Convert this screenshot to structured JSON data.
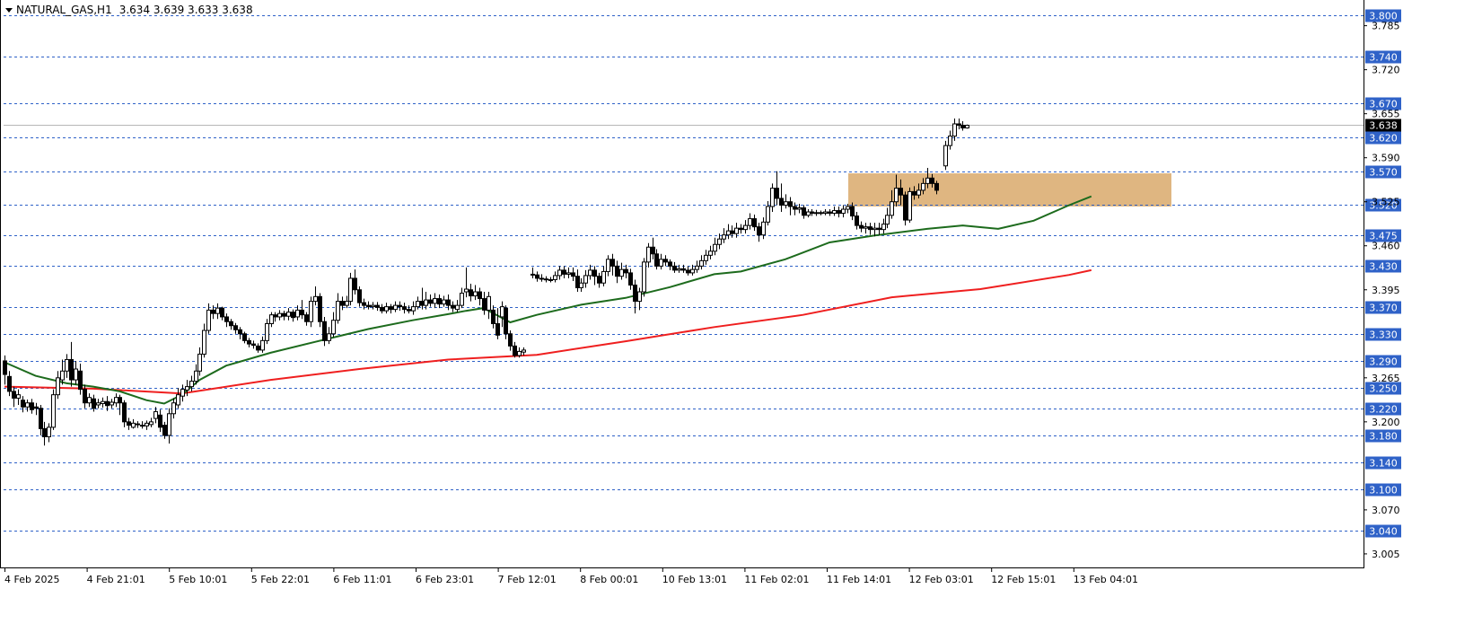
{
  "header": {
    "symbol": "NATURAL_GAS,H1",
    "ohlc": "3.634 3.639 3.633 3.638"
  },
  "colors": {
    "background": "#ffffff",
    "level_line": "#2f62c8",
    "level_badge": "#2f62c8",
    "current_badge": "#000000",
    "bull_body": "#ffffff",
    "bear_body": "#000000",
    "ma_fast": "#1d6b1d",
    "ma_slow": "#ef1f1f",
    "zone": "#d9a96b"
  },
  "chart_data": {
    "type": "candlestick",
    "timeframe": "H1",
    "ylim": [
      2.985,
      3.815
    ],
    "y_ticks": [
      "3.785",
      "3.720",
      "3.655",
      "3.590",
      "3.525",
      "3.460",
      "3.395",
      "3.265",
      "3.200",
      "3.070",
      "3.005"
    ],
    "x_labels": [
      "4 Feb 2025",
      "4 Feb 21:01",
      "5 Feb 10:01",
      "5 Feb 22:01",
      "6 Feb 11:01",
      "6 Feb 23:01",
      "7 Feb 12:01",
      "8 Feb 00:01",
      "10 Feb 13:01",
      "11 Feb 02:01",
      "11 Feb 14:01",
      "12 Feb 03:01",
      "12 Feb 15:01",
      "13 Feb 04:01"
    ],
    "levels": [
      "3.800",
      "3.740",
      "3.670",
      "3.620",
      "3.570",
      "3.520",
      "3.475",
      "3.430",
      "3.370",
      "3.330",
      "3.290",
      "3.250",
      "3.220",
      "3.180",
      "3.140",
      "3.100",
      "3.040"
    ],
    "current_price": "3.638",
    "zone": {
      "top": 3.567,
      "bottom": 3.518
    },
    "ma_fast_path": [
      [
        0,
        3.288
      ],
      [
        7,
        3.268
      ],
      [
        14,
        3.257
      ],
      [
        20,
        3.252
      ],
      [
        26,
        3.245
      ],
      [
        32,
        3.232
      ],
      [
        36,
        3.227
      ],
      [
        40,
        3.24
      ],
      [
        44,
        3.262
      ],
      [
        50,
        3.283
      ],
      [
        60,
        3.302
      ],
      [
        70,
        3.318
      ],
      [
        82,
        3.337
      ],
      [
        92,
        3.35
      ],
      [
        100,
        3.359
      ],
      [
        104,
        3.364
      ],
      [
        108,
        3.368
      ],
      [
        114,
        3.347
      ],
      [
        120,
        3.358
      ],
      [
        130,
        3.373
      ],
      [
        140,
        3.383
      ],
      [
        150,
        3.399
      ],
      [
        160,
        3.418
      ],
      [
        166,
        3.422
      ],
      [
        176,
        3.44
      ],
      [
        186,
        3.465
      ],
      [
        196,
        3.475
      ],
      [
        208,
        3.485
      ],
      [
        216,
        3.49
      ],
      [
        224,
        3.485
      ],
      [
        232,
        3.497
      ],
      [
        240,
        3.52
      ],
      [
        245,
        3.533
      ]
    ],
    "ma_slow_path": [
      [
        0,
        3.252
      ],
      [
        20,
        3.249
      ],
      [
        40,
        3.242
      ],
      [
        60,
        3.262
      ],
      [
        80,
        3.278
      ],
      [
        100,
        3.292
      ],
      [
        120,
        3.299
      ],
      [
        140,
        3.319
      ],
      [
        160,
        3.34
      ],
      [
        180,
        3.358
      ],
      [
        200,
        3.384
      ],
      [
        220,
        3.396
      ],
      [
        240,
        3.417
      ],
      [
        245,
        3.424
      ]
    ],
    "candles": [
      [
        3.29,
        3.27,
        3.298,
        3.255
      ],
      [
        3.267,
        3.245,
        3.275,
        3.238
      ],
      [
        3.245,
        3.235,
        3.252,
        3.222
      ],
      [
        3.235,
        3.24,
        3.248,
        3.225
      ],
      [
        3.232,
        3.222,
        3.238,
        3.214
      ],
      [
        3.222,
        3.228,
        3.233,
        3.215
      ],
      [
        3.228,
        3.218,
        3.234,
        3.212
      ],
      [
        3.222,
        3.22,
        3.228,
        3.21
      ],
      [
        3.22,
        3.19,
        3.225,
        3.18
      ],
      [
        3.19,
        3.178,
        3.2,
        3.165
      ],
      [
        3.178,
        3.192,
        3.198,
        3.17
      ],
      [
        3.192,
        3.24,
        3.248,
        3.188
      ],
      [
        3.24,
        3.265,
        3.275,
        3.234
      ],
      [
        3.262,
        3.275,
        3.292,
        3.255
      ],
      [
        3.275,
        3.292,
        3.3,
        3.265
      ],
      [
        3.292,
        3.262,
        3.318,
        3.252
      ],
      [
        3.262,
        3.278,
        3.29,
        3.255
      ],
      [
        3.275,
        3.248,
        3.286,
        3.24
      ],
      [
        3.248,
        3.228,
        3.255,
        3.22
      ],
      [
        3.228,
        3.236,
        3.242,
        3.222
      ],
      [
        3.234,
        3.22,
        3.24,
        3.215
      ],
      [
        3.225,
        3.228,
        3.234,
        3.22
      ],
      [
        3.227,
        3.23,
        3.236,
        3.221
      ],
      [
        3.23,
        3.224,
        3.238,
        3.216
      ],
      [
        3.225,
        3.229,
        3.234,
        3.22
      ],
      [
        3.228,
        3.236,
        3.242,
        3.222
      ],
      [
        3.236,
        3.228,
        3.24,
        3.21
      ],
      [
        3.228,
        3.2,
        3.232,
        3.192
      ],
      [
        3.2,
        3.195,
        3.206,
        3.188
      ],
      [
        3.192,
        3.198,
        3.204,
        3.19
      ],
      [
        3.197,
        3.196,
        3.201,
        3.191
      ],
      [
        3.195,
        3.194,
        3.201,
        3.19
      ],
      [
        3.194,
        3.198,
        3.202,
        3.188
      ],
      [
        3.196,
        3.2,
        3.206,
        3.192
      ],
      [
        3.205,
        3.215,
        3.222,
        3.198
      ],
      [
        3.21,
        3.192,
        3.218,
        3.185
      ],
      [
        3.195,
        3.18,
        3.2,
        3.175
      ],
      [
        3.18,
        3.212,
        3.22,
        3.168
      ],
      [
        3.212,
        3.228,
        3.235,
        3.205
      ],
      [
        3.225,
        3.24,
        3.25,
        3.22
      ],
      [
        3.238,
        3.248,
        3.255,
        3.23
      ],
      [
        3.247,
        3.252,
        3.262,
        3.238
      ],
      [
        3.252,
        3.26,
        3.268,
        3.245
      ],
      [
        3.26,
        3.275,
        3.285,
        3.255
      ],
      [
        3.275,
        3.3,
        3.31,
        3.268
      ],
      [
        3.3,
        3.335,
        3.345,
        3.295
      ],
      [
        3.335,
        3.365,
        3.375,
        3.33
      ],
      [
        3.365,
        3.36,
        3.372,
        3.352
      ],
      [
        3.36,
        3.368,
        3.375,
        3.352
      ],
      [
        3.368,
        3.355,
        3.37,
        3.35
      ],
      [
        3.355,
        3.348,
        3.36,
        3.34
      ],
      [
        3.348,
        3.342,
        3.352,
        3.336
      ],
      [
        3.342,
        3.336,
        3.346,
        3.33
      ],
      [
        3.336,
        3.33,
        3.34,
        3.322
      ],
      [
        3.33,
        3.32,
        3.333,
        3.316
      ],
      [
        3.32,
        3.315,
        3.324,
        3.31
      ],
      [
        3.315,
        3.313,
        3.32,
        3.308
      ],
      [
        3.312,
        3.306,
        3.316,
        3.302
      ],
      [
        3.306,
        3.32,
        3.326,
        3.302
      ],
      [
        3.32,
        3.345,
        3.352,
        3.315
      ],
      [
        3.345,
        3.358,
        3.362,
        3.34
      ],
      [
        3.358,
        3.355,
        3.362,
        3.348
      ],
      [
        3.355,
        3.36,
        3.365,
        3.35
      ],
      [
        3.36,
        3.356,
        3.364,
        3.35
      ],
      [
        3.356,
        3.362,
        3.368,
        3.35
      ],
      [
        3.362,
        3.354,
        3.366,
        3.348
      ],
      [
        3.355,
        3.365,
        3.372,
        3.35
      ],
      [
        3.365,
        3.358,
        3.38,
        3.352
      ],
      [
        3.358,
        3.348,
        3.362,
        3.342
      ],
      [
        3.348,
        3.378,
        3.385,
        3.34
      ],
      [
        3.378,
        3.385,
        3.4,
        3.372
      ],
      [
        3.385,
        3.348,
        3.39,
        3.34
      ],
      [
        3.348,
        3.32,
        3.355,
        3.312
      ],
      [
        3.32,
        3.33,
        3.34,
        3.315
      ],
      [
        3.33,
        3.35,
        3.362,
        3.325
      ],
      [
        3.35,
        3.378,
        3.39,
        3.345
      ],
      [
        3.378,
        3.372,
        3.385,
        3.365
      ],
      [
        3.372,
        3.378,
        3.386,
        3.368
      ],
      [
        3.378,
        3.412,
        3.42,
        3.372
      ],
      [
        3.412,
        3.395,
        3.425,
        3.388
      ],
      [
        3.395,
        3.376,
        3.4,
        3.37
      ],
      [
        3.376,
        3.372,
        3.382,
        3.366
      ],
      [
        3.372,
        3.37,
        3.378,
        3.366
      ],
      [
        3.37,
        3.372,
        3.377,
        3.366
      ],
      [
        3.372,
        3.369,
        3.377,
        3.364
      ],
      [
        3.369,
        3.364,
        3.374,
        3.36
      ],
      [
        3.364,
        3.37,
        3.376,
        3.36
      ],
      [
        3.37,
        3.366,
        3.374,
        3.36
      ],
      [
        3.366,
        3.372,
        3.378,
        3.362
      ],
      [
        3.372,
        3.37,
        3.378,
        3.364
      ],
      [
        3.37,
        3.366,
        3.376,
        3.36
      ],
      [
        3.366,
        3.364,
        3.372,
        3.36
      ],
      [
        3.364,
        3.37,
        3.378,
        3.358
      ],
      [
        3.37,
        3.378,
        3.385,
        3.366
      ],
      [
        3.378,
        3.372,
        3.398,
        3.366
      ],
      [
        3.372,
        3.38,
        3.392,
        3.366
      ],
      [
        3.38,
        3.375,
        3.388,
        3.37
      ],
      [
        3.375,
        3.382,
        3.39,
        3.368
      ],
      [
        3.382,
        3.374,
        3.388,
        3.368
      ],
      [
        3.374,
        3.38,
        3.386,
        3.37
      ],
      [
        3.38,
        3.372,
        3.388,
        3.365
      ],
      [
        3.372,
        3.368,
        3.378,
        3.362
      ],
      [
        3.366,
        3.372,
        3.38,
        3.362
      ],
      [
        3.372,
        3.39,
        3.398,
        3.368
      ],
      [
        3.392,
        3.396,
        3.428,
        3.384
      ],
      [
        3.395,
        3.386,
        3.404,
        3.378
      ],
      [
        3.386,
        3.392,
        3.402,
        3.38
      ],
      [
        3.392,
        3.382,
        3.398,
        3.372
      ],
      [
        3.382,
        3.365,
        3.392,
        3.358
      ],
      [
        3.365,
        3.385,
        3.392,
        3.352
      ],
      [
        3.365,
        3.345,
        3.372,
        3.338
      ],
      [
        3.345,
        3.328,
        3.368,
        3.322
      ],
      [
        3.355,
        3.37,
        3.378,
        3.34
      ],
      [
        3.368,
        3.33,
        3.372,
        3.322
      ],
      [
        3.33,
        3.312,
        3.335,
        3.305
      ],
      [
        3.312,
        3.298,
        3.318,
        3.295
      ],
      [
        3.298,
        3.304,
        3.31,
        3.295
      ],
      [
        3.303,
        3.306,
        3.31,
        3.298
      ],
      [
        null,
        null,
        null,
        null
      ],
      [
        3.418,
        3.417,
        3.428,
        3.412
      ],
      [
        3.417,
        3.412,
        3.422,
        3.407
      ],
      [
        3.412,
        3.411,
        3.418,
        3.407
      ],
      [
        3.411,
        3.41,
        3.415,
        3.406
      ],
      [
        3.41,
        3.41,
        3.414,
        3.406
      ],
      [
        3.41,
        3.416,
        3.422,
        3.406
      ],
      [
        3.416,
        3.424,
        3.43,
        3.41
      ],
      [
        3.424,
        3.418,
        3.43,
        3.412
      ],
      [
        3.418,
        3.42,
        3.428,
        3.412
      ],
      [
        3.42,
        3.415,
        3.428,
        3.408
      ],
      [
        3.415,
        3.398,
        3.425,
        3.392
      ],
      [
        3.398,
        3.405,
        3.412,
        3.392
      ],
      [
        3.405,
        3.416,
        3.424,
        3.398
      ],
      [
        3.416,
        3.424,
        3.432,
        3.41
      ],
      [
        3.424,
        3.415,
        3.43,
        3.402
      ],
      [
        3.415,
        3.405,
        3.42,
        3.398
      ],
      [
        3.405,
        3.422,
        3.43,
        3.4
      ],
      [
        3.422,
        3.44,
        3.446,
        3.415
      ],
      [
        3.44,
        3.43,
        3.448,
        3.416
      ],
      [
        3.43,
        3.415,
        3.438,
        3.405
      ],
      [
        3.415,
        3.425,
        3.435,
        3.41
      ],
      [
        3.425,
        3.42,
        3.432,
        3.412
      ],
      [
        3.42,
        3.402,
        3.426,
        3.395
      ],
      [
        3.402,
        3.378,
        3.41,
        3.36
      ],
      [
        3.378,
        3.392,
        3.398,
        3.365
      ],
      [
        3.392,
        3.436,
        3.442,
        3.385
      ],
      [
        3.436,
        3.458,
        3.464,
        3.428
      ],
      [
        3.458,
        3.448,
        3.472,
        3.44
      ],
      [
        3.448,
        3.43,
        3.455,
        3.425
      ],
      [
        3.43,
        3.44,
        3.448,
        3.425
      ],
      [
        3.44,
        3.436,
        3.446,
        3.43
      ],
      [
        3.436,
        3.43,
        3.44,
        3.424
      ],
      [
        3.43,
        3.424,
        3.436,
        3.42
      ],
      [
        3.424,
        3.426,
        3.432,
        3.42
      ],
      [
        3.426,
        3.424,
        3.432,
        3.42
      ],
      [
        3.424,
        3.42,
        3.43,
        3.416
      ],
      [
        3.42,
        3.425,
        3.432,
        3.416
      ],
      [
        3.425,
        3.43,
        3.438,
        3.42
      ],
      [
        3.43,
        3.438,
        3.446,
        3.425
      ],
      [
        3.438,
        3.446,
        3.454,
        3.432
      ],
      [
        3.446,
        3.452,
        3.46,
        3.44
      ],
      [
        3.452,
        3.462,
        3.472,
        3.446
      ],
      [
        3.462,
        3.47,
        3.478,
        3.455
      ],
      [
        3.47,
        3.476,
        3.486,
        3.464
      ],
      [
        3.476,
        3.482,
        3.492,
        3.47
      ],
      [
        3.482,
        3.478,
        3.49,
        3.472
      ],
      [
        3.478,
        3.486,
        3.494,
        3.472
      ],
      [
        3.486,
        3.484,
        3.492,
        3.478
      ],
      [
        3.484,
        3.49,
        3.498,
        3.478
      ],
      [
        3.49,
        3.5,
        3.508,
        3.484
      ],
      [
        3.5,
        3.488,
        3.506,
        3.482
      ],
      [
        3.488,
        3.476,
        3.494,
        3.466
      ],
      [
        3.476,
        3.495,
        3.502,
        3.47
      ],
      [
        3.495,
        3.518,
        3.526,
        3.49
      ],
      [
        3.518,
        3.545,
        3.552,
        3.51
      ],
      [
        3.545,
        3.53,
        3.57,
        3.52
      ],
      [
        3.53,
        3.52,
        3.552,
        3.51
      ],
      [
        3.52,
        3.525,
        3.536,
        3.515
      ],
      [
        3.525,
        3.518,
        3.532,
        3.505
      ],
      [
        3.518,
        3.514,
        3.524,
        3.505
      ],
      [
        3.514,
        3.516,
        3.522,
        3.508
      ],
      [
        3.516,
        3.505,
        3.52,
        3.5
      ],
      [
        3.505,
        3.51,
        3.514,
        3.502
      ],
      [
        3.51,
        3.508,
        3.514,
        3.504
      ],
      [
        3.508,
        3.509,
        3.513,
        3.504
      ],
      [
        3.509,
        3.508,
        3.512,
        3.505
      ],
      [
        3.508,
        3.51,
        3.514,
        3.505
      ],
      [
        3.51,
        3.508,
        3.514,
        3.504
      ],
      [
        3.508,
        3.512,
        3.518,
        3.504
      ],
      [
        3.512,
        3.508,
        3.518,
        3.502
      ],
      [
        3.508,
        3.514,
        3.52,
        3.502
      ],
      [
        3.514,
        3.518,
        3.522,
        3.508
      ],
      [
        3.518,
        3.504,
        3.524,
        3.498
      ],
      [
        3.504,
        3.49,
        3.51,
        3.484
      ],
      [
        3.49,
        3.486,
        3.496,
        3.48
      ],
      [
        3.486,
        3.488,
        3.494,
        3.478
      ],
      [
        3.488,
        3.484,
        3.494,
        3.476
      ],
      [
        3.484,
        3.486,
        3.494,
        3.474
      ],
      [
        3.486,
        3.484,
        3.494,
        3.476
      ],
      [
        3.484,
        3.492,
        3.5,
        3.478
      ],
      [
        3.492,
        3.505,
        3.516,
        3.486
      ],
      [
        3.505,
        3.525,
        3.542,
        3.5
      ],
      [
        3.525,
        3.545,
        3.565,
        3.518
      ],
      [
        3.545,
        3.535,
        3.558,
        3.52
      ],
      [
        3.535,
        3.498,
        3.54,
        3.49
      ],
      [
        3.498,
        3.54,
        3.546,
        3.494
      ],
      [
        3.54,
        3.535,
        3.548,
        3.528
      ],
      [
        3.535,
        3.542,
        3.552,
        3.53
      ],
      [
        3.542,
        3.552,
        3.56,
        3.536
      ],
      [
        3.552,
        3.56,
        3.575,
        3.545
      ],
      [
        3.56,
        3.552,
        3.566,
        3.546
      ],
      [
        3.552,
        3.542,
        3.556,
        3.536
      ],
      [
        null,
        null,
        null,
        null
      ],
      [
        3.578,
        3.608,
        3.615,
        3.572
      ],
      [
        3.608,
        3.622,
        3.63,
        3.602
      ],
      [
        3.622,
        3.64,
        3.648,
        3.615
      ],
      [
        3.64,
        3.638,
        3.648,
        3.632
      ],
      [
        3.638,
        3.634,
        3.644,
        3.63
      ],
      [
        3.634,
        3.638,
        3.639,
        3.633
      ]
    ]
  }
}
